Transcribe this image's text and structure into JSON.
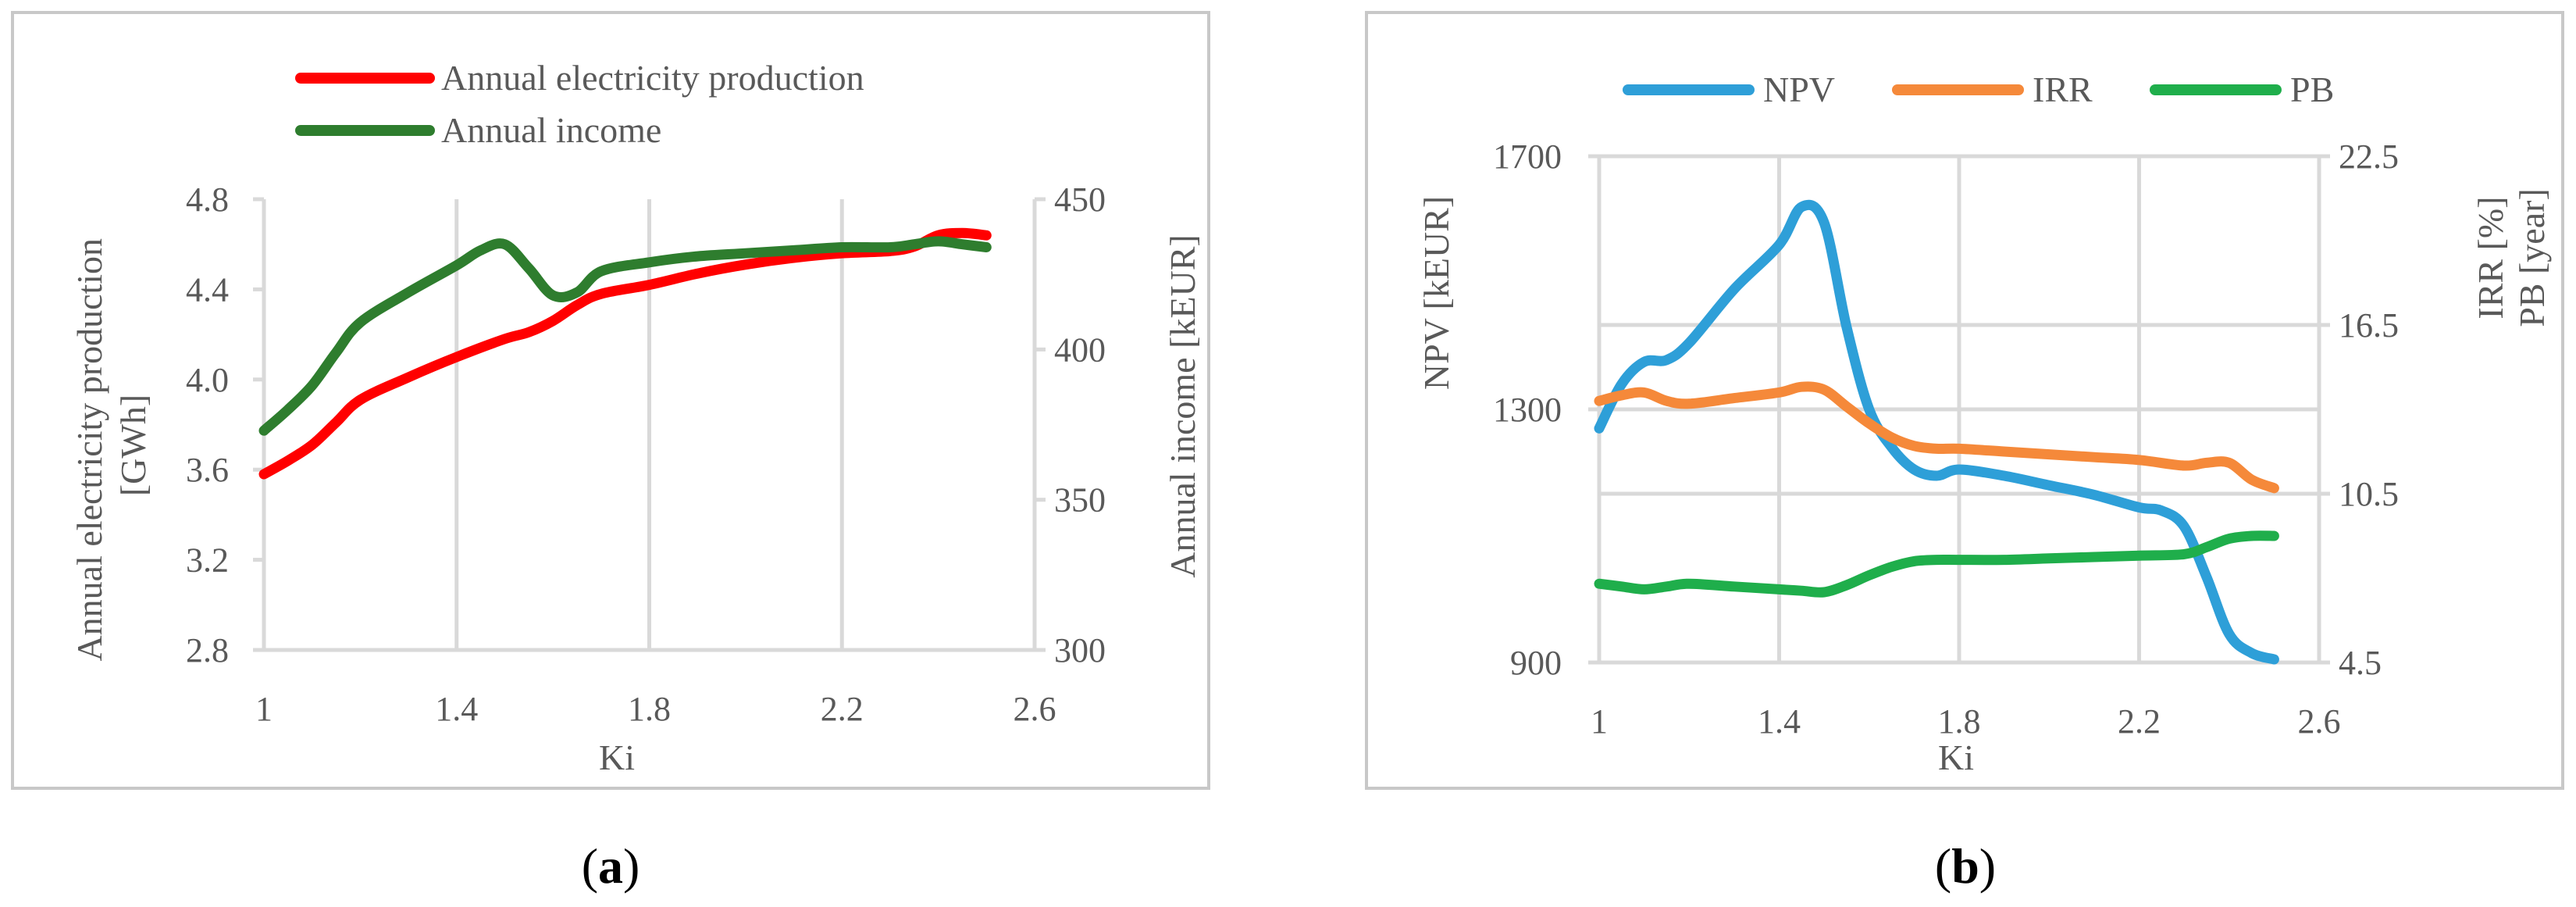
{
  "chart_data": [
    {
      "type": "line",
      "panel_label": "a",
      "xlabel": "Ki",
      "ylabel_left": "Annual electricity production [GWh]",
      "ylabel_right": "Annual income [kEUR]",
      "xlim": [
        1,
        2.6
      ],
      "x_ticks": [
        1,
        1.4,
        1.8,
        2.2,
        2.6
      ],
      "x_tick_labels": [
        "1",
        "1.4",
        "1.8",
        "2.2",
        "2.6"
      ],
      "ylim_left": [
        2.8,
        4.8
      ],
      "y_ticks_left": [
        2.8,
        3.2,
        3.6,
        4.0,
        4.4,
        4.8
      ],
      "y_tick_labels_left": [
        "2.8",
        "3.2",
        "3.6",
        "4.0",
        "4.4",
        "4.8"
      ],
      "ylim_right": [
        300,
        450
      ],
      "y_ticks_right": [
        300,
        350,
        400,
        450
      ],
      "y_tick_labels_right": [
        "300",
        "350",
        "400",
        "450"
      ],
      "grid": "vertical",
      "legend_position": "top",
      "series": [
        {
          "name": "Annual electricity production",
          "color": "#ff0000",
          "axis": "left",
          "x": [
            1.0,
            1.05,
            1.1,
            1.15,
            1.2,
            1.3,
            1.4,
            1.5,
            1.55,
            1.6,
            1.65,
            1.7,
            1.8,
            1.9,
            2.0,
            2.1,
            2.2,
            2.3,
            2.35,
            2.4,
            2.45,
            2.5
          ],
          "y": [
            3.58,
            3.64,
            3.71,
            3.81,
            3.91,
            4.01,
            4.1,
            4.18,
            4.21,
            4.26,
            4.33,
            4.38,
            4.42,
            4.47,
            4.51,
            4.54,
            4.56,
            4.57,
            4.59,
            4.64,
            4.65,
            4.64
          ]
        },
        {
          "name": "Annual income",
          "color": "#2e7d2e",
          "axis": "right",
          "x": [
            1.0,
            1.05,
            1.1,
            1.15,
            1.2,
            1.3,
            1.4,
            1.45,
            1.5,
            1.55,
            1.6,
            1.65,
            1.7,
            1.8,
            1.9,
            2.0,
            2.1,
            2.2,
            2.3,
            2.35,
            2.4,
            2.45,
            2.5
          ],
          "y": [
            373,
            380,
            388,
            399,
            409,
            419,
            428,
            433,
            435,
            427,
            418,
            419,
            426,
            429,
            431,
            432,
            433,
            434,
            434,
            435,
            436,
            435,
            434
          ]
        }
      ]
    },
    {
      "type": "line",
      "panel_label": "b",
      "xlabel": "Ki",
      "ylabel_left": "NPV [kEUR]",
      "ylabel_right_1": "IRR [%]",
      "ylabel_right_2": "PB [year]",
      "xlim": [
        1,
        2.6
      ],
      "x_ticks": [
        1,
        1.4,
        1.8,
        2.2,
        2.6
      ],
      "x_tick_labels": [
        "1",
        "1.4",
        "1.8",
        "2.2",
        "2.6"
      ],
      "ylim_left": [
        900,
        1700
      ],
      "y_ticks_left": [
        900,
        1300,
        1700
      ],
      "y_tick_labels_left": [
        "900",
        "1300",
        "1700"
      ],
      "ylim_right": [
        4.5,
        22.5
      ],
      "y_ticks_right": [
        4.5,
        10.5,
        16.5,
        22.5
      ],
      "y_tick_labels_right": [
        "4.5",
        "10.5",
        "16.5",
        "22.5"
      ],
      "grid": "both",
      "legend_position": "top",
      "series": [
        {
          "name": "NPV",
          "color": "#2e9fd8",
          "axis": "left",
          "x": [
            1.0,
            1.05,
            1.1,
            1.15,
            1.2,
            1.3,
            1.4,
            1.45,
            1.5,
            1.55,
            1.6,
            1.65,
            1.7,
            1.75,
            1.8,
            1.9,
            2.0,
            2.1,
            2.2,
            2.25,
            2.3,
            2.35,
            2.4,
            2.45,
            2.5
          ],
          "y": [
            1270,
            1340,
            1375,
            1378,
            1405,
            1490,
            1560,
            1620,
            1595,
            1430,
            1300,
            1240,
            1205,
            1195,
            1205,
            1195,
            1180,
            1165,
            1145,
            1140,
            1115,
            1035,
            945,
            915,
            905
          ]
        },
        {
          "name": "IRR",
          "color": "#f5893a",
          "axis": "right",
          "x": [
            1.0,
            1.05,
            1.1,
            1.15,
            1.2,
            1.3,
            1.4,
            1.45,
            1.5,
            1.55,
            1.6,
            1.65,
            1.7,
            1.75,
            1.8,
            1.9,
            2.0,
            2.1,
            2.2,
            2.3,
            2.35,
            2.4,
            2.45,
            2.5
          ],
          "y": [
            13.8,
            14.0,
            14.1,
            13.8,
            13.7,
            13.9,
            14.1,
            14.3,
            14.2,
            13.6,
            13.0,
            12.5,
            12.2,
            12.1,
            12.1,
            12.0,
            11.9,
            11.8,
            11.7,
            11.5,
            11.6,
            11.6,
            11.0,
            10.7
          ]
        },
        {
          "name": "PB",
          "color": "#1fae4b",
          "axis": "right",
          "x": [
            1.0,
            1.05,
            1.1,
            1.15,
            1.2,
            1.3,
            1.4,
            1.45,
            1.5,
            1.55,
            1.6,
            1.65,
            1.7,
            1.75,
            1.8,
            1.9,
            2.0,
            2.1,
            2.2,
            2.3,
            2.35,
            2.4,
            2.45,
            2.5
          ],
          "y": [
            7.3,
            7.2,
            7.1,
            7.2,
            7.3,
            7.2,
            7.1,
            7.05,
            7.0,
            7.25,
            7.6,
            7.9,
            8.1,
            8.15,
            8.15,
            8.15,
            8.2,
            8.25,
            8.3,
            8.35,
            8.6,
            8.9,
            9.0,
            9.0
          ]
        }
      ]
    }
  ]
}
